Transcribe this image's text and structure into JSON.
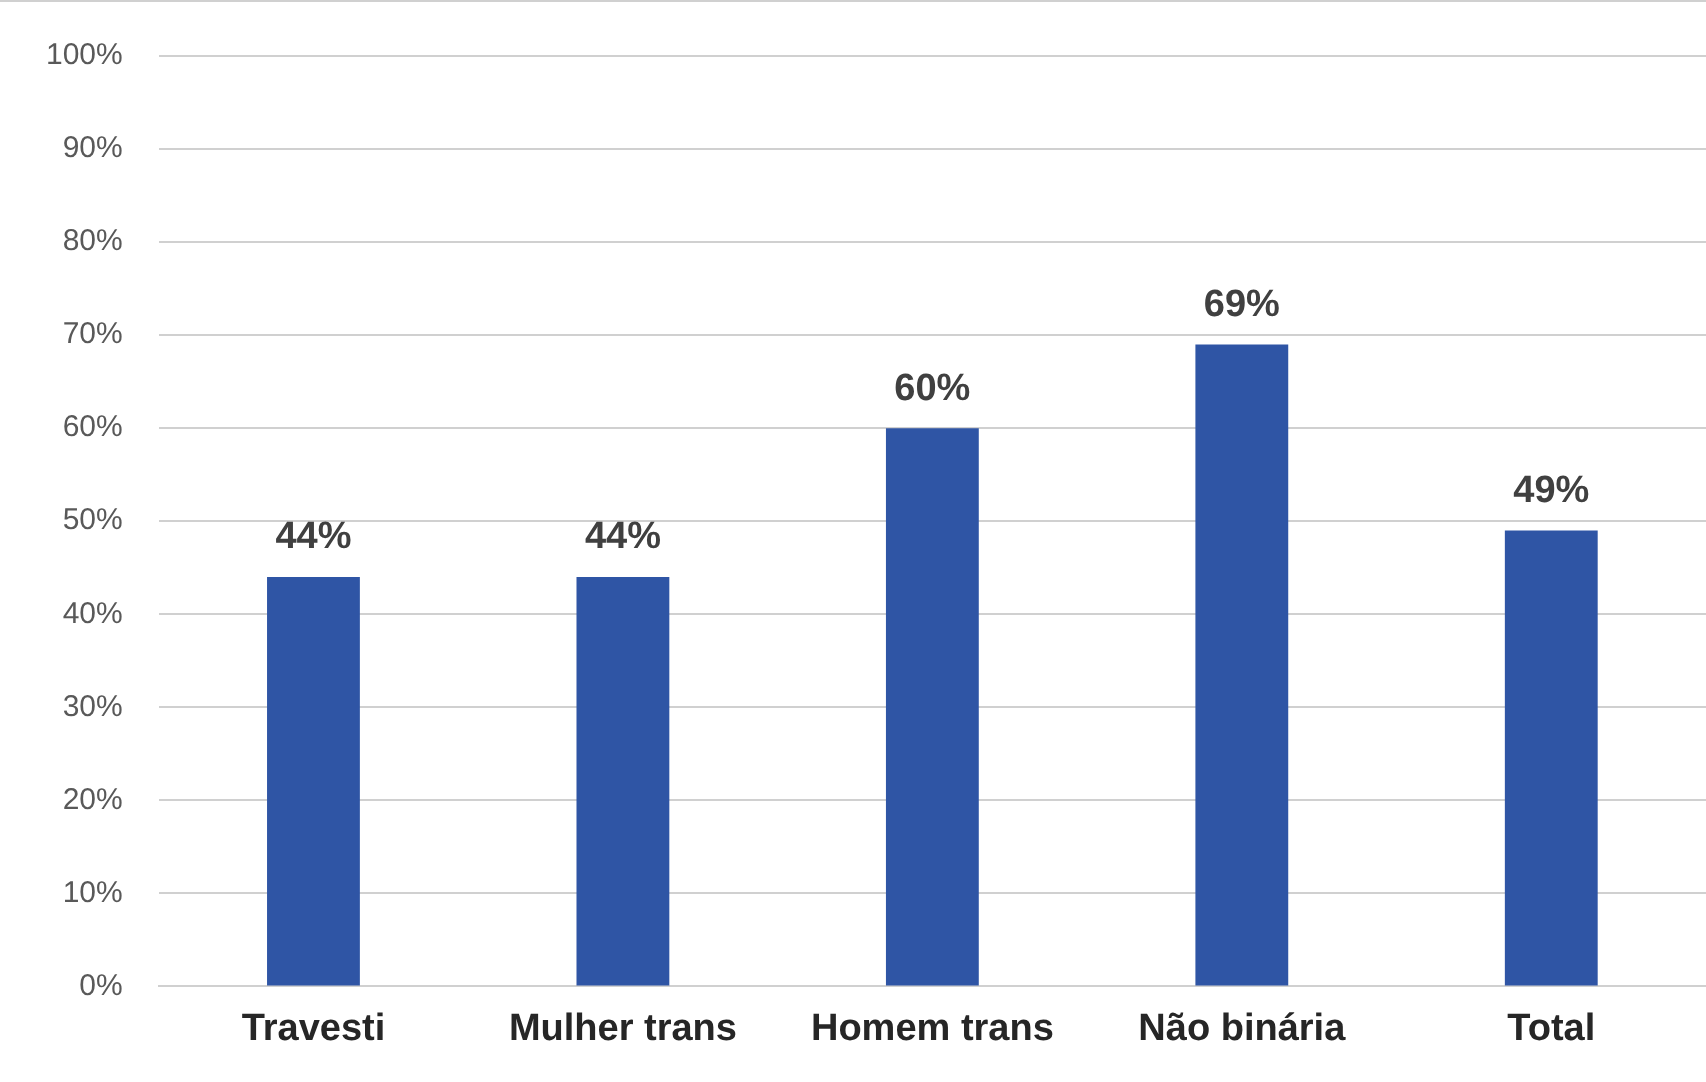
{
  "chart_data": {
    "type": "bar",
    "categories": [
      "Travesti",
      "Mulher trans",
      "Homem trans",
      "Não binária",
      "Total"
    ],
    "values": [
      44,
      44,
      60,
      69,
      49
    ],
    "color": "#2f55a5",
    "value_labels": [
      "44%",
      "44%",
      "60%",
      "69%",
      "49%"
    ],
    "ylim": [
      0,
      100
    ],
    "yticks": [
      {
        "value": 0,
        "label": "0%"
      },
      {
        "value": 10,
        "label": "10%"
      },
      {
        "value": 20,
        "label": "20%"
      },
      {
        "value": 30,
        "label": "30%"
      },
      {
        "value": 40,
        "label": "40%"
      },
      {
        "value": 50,
        "label": "50%"
      },
      {
        "value": 60,
        "label": "60%"
      },
      {
        "value": 70,
        "label": "70%"
      },
      {
        "value": 80,
        "label": "80%"
      },
      {
        "value": 90,
        "label": "90%"
      },
      {
        "value": 100,
        "label": "100%"
      }
    ],
    "grid": "y",
    "legend": false
  }
}
